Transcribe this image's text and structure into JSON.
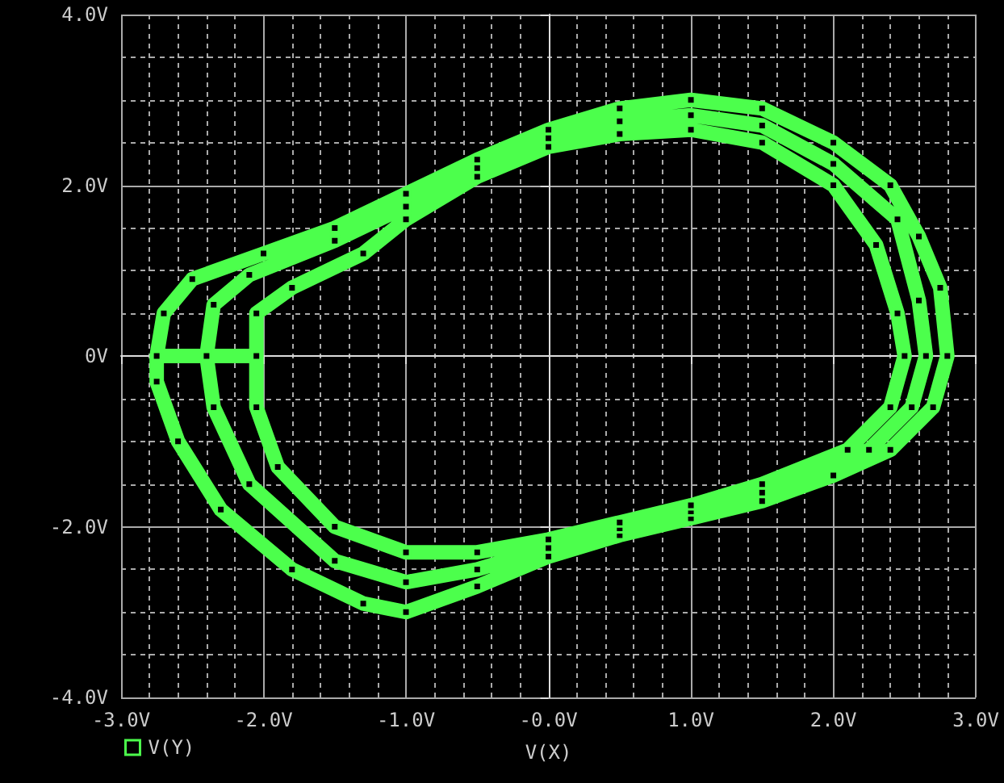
{
  "chart_data": {
    "type": "line",
    "xlabel": "V(X)",
    "legend": "bottom left",
    "grid": true,
    "marker": "square",
    "line_style": "solid",
    "xlim": [
      -3,
      3
    ],
    "ylim": [
      -4,
      4
    ],
    "xticks": [
      {
        "value": -3,
        "label": "-3.0V"
      },
      {
        "value": -2,
        "label": "-2.0V"
      },
      {
        "value": -1,
        "label": "-1.0V"
      },
      {
        "value": 0,
        "label": "-0.0V"
      },
      {
        "value": 1,
        "label": "1.0V"
      },
      {
        "value": 2,
        "label": "2.0V"
      },
      {
        "value": 3,
        "label": "3.0V"
      }
    ],
    "yticks": [
      {
        "value": -4,
        "label": "-4.0V"
      },
      {
        "value": -2,
        "label": "-2.0V"
      },
      {
        "value": 0,
        "label": "0V"
      },
      {
        "value": 2,
        "label": "2.0V"
      },
      {
        "value": 4,
        "label": "4.0V"
      }
    ],
    "series": [
      {
        "name": "V(Y)",
        "color": "#4cff4c",
        "x": [
          -2.75,
          -2.7,
          -2.5,
          -2.0,
          -1.5,
          -1.0,
          -0.5,
          0,
          0.5,
          1.0,
          1.5,
          2.0,
          2.4,
          2.6,
          2.75,
          2.8,
          2.7,
          2.4,
          2.0,
          1.5,
          1.0,
          0.5,
          0,
          -0.5,
          -1.0,
          -1.3,
          -1.8,
          -2.3,
          -2.6,
          -2.75,
          -2.75,
          -2.4,
          -2.35,
          -2.1,
          -1.5,
          -1.0,
          -0.5,
          0,
          0.5,
          1.0,
          1.5,
          2.0,
          2.45,
          2.6,
          2.65,
          2.55,
          2.25,
          1.5,
          1.0,
          0.5,
          0,
          -0.5,
          -1.0,
          -1.5,
          -2.1,
          -2.35,
          -2.4,
          -2.05,
          -2.05,
          -1.8,
          -1.3,
          -1.0,
          -0.5,
          0,
          0.5,
          1.0,
          1.5,
          2.0,
          2.3,
          2.45,
          2.5,
          2.4,
          2.1,
          1.5,
          1.0,
          0.5,
          0,
          -0.5,
          -1.0,
          -1.5,
          -1.9,
          -2.05,
          -2.05
        ],
        "values": [
          0,
          0.5,
          0.9,
          1.2,
          1.5,
          1.9,
          2.3,
          2.65,
          2.9,
          3.0,
          2.9,
          2.5,
          2.0,
          1.4,
          0.8,
          0,
          -0.6,
          -1.1,
          -1.4,
          -1.7,
          -1.9,
          -2.1,
          -2.35,
          -2.7,
          -3.0,
          -2.9,
          -2.5,
          -1.8,
          -1.0,
          -0.3,
          0,
          0,
          0.6,
          0.95,
          1.35,
          1.75,
          2.2,
          2.55,
          2.75,
          2.82,
          2.7,
          2.25,
          1.6,
          0.65,
          0,
          -0.6,
          -1.1,
          -1.6,
          -1.82,
          -2.02,
          -2.25,
          -2.5,
          -2.65,
          -2.4,
          -1.5,
          -0.6,
          0,
          0,
          0.5,
          0.8,
          1.2,
          1.6,
          2.1,
          2.45,
          2.6,
          2.65,
          2.5,
          2.0,
          1.3,
          0.5,
          0,
          -0.6,
          -1.1,
          -1.5,
          -1.75,
          -1.95,
          -2.15,
          -2.3,
          -2.3,
          -2.0,
          -1.3,
          -0.6,
          0
        ]
      }
    ]
  }
}
